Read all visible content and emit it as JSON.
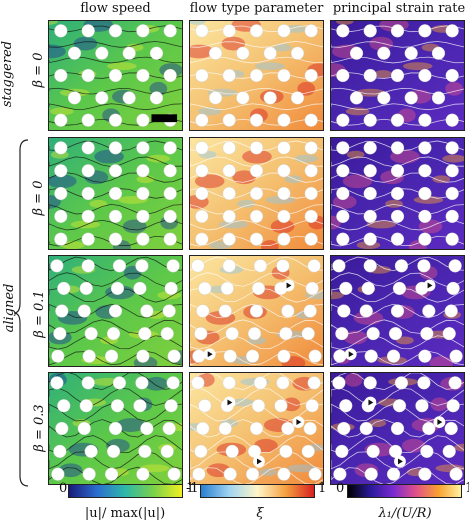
{
  "columns": {
    "speed": "flow speed",
    "type": "flow type parameter",
    "strain": "principal strain rate"
  },
  "groups": {
    "staggered": "staggered",
    "aligned": "aligned"
  },
  "rows": [
    {
      "beta_label": "β = 0"
    },
    {
      "beta_label": "β = 0"
    },
    {
      "beta_label": "β = 0.1"
    },
    {
      "beta_label": "β = 0.3"
    }
  ],
  "colorbars": {
    "speed": {
      "min": "0",
      "max": "1",
      "label": "|u|/ max(|u|)",
      "colors": [
        "#1a1a7a",
        "#2a6fd0",
        "#2fb8a8",
        "#7ad14a",
        "#f0f020"
      ]
    },
    "type": {
      "min": "-1",
      "max": "1",
      "label": "ξ",
      "colors": [
        "#2a7fd0",
        "#9fd4f2",
        "#fff6c8",
        "#f6a040",
        "#d62020"
      ]
    },
    "strain": {
      "min": "0",
      "max": "1",
      "label": "λ₁/(U/R)",
      "colors": [
        "#000000",
        "#2a1a9a",
        "#7a2ad0",
        "#e0508a",
        "#f8a030",
        "#fff2a0"
      ]
    }
  },
  "scale_bar_color": "#000000"
}
